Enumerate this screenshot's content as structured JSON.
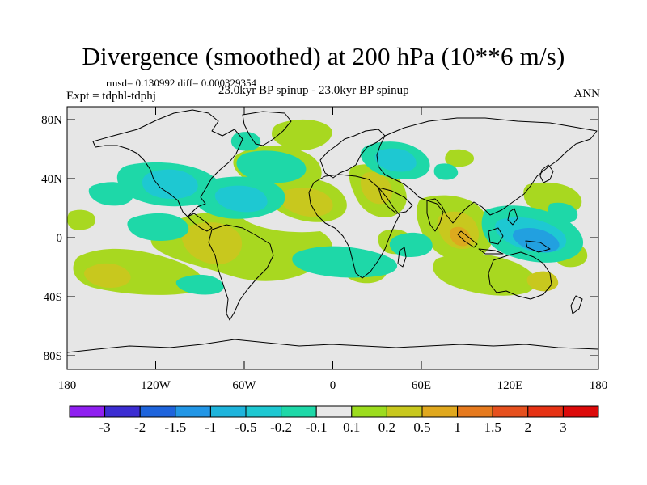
{
  "title": "Divergence (smoothed) at 200 hPa (10**6 m/s)",
  "stats": "rmsd= 0.130992 diff= 0.000329354",
  "expt": "Expt = tdphl-tdphj",
  "subtitle": "23.0kyr BP spinup - 23.0kyr BP spinup",
  "season": "ANN",
  "lat_labels": [
    "80N",
    "40N",
    "0",
    "40S",
    "80S"
  ],
  "lon_labels": [
    "180",
    "120W",
    "60W",
    "0",
    "60E",
    "120E",
    "180"
  ],
  "colorbar": {
    "labels": [
      "-3",
      "-2",
      "-1.5",
      "-1",
      "-0.5",
      "-0.2",
      "-0.1",
      "0.1",
      "0.2",
      "0.5",
      "1",
      "1.5",
      "2",
      "3"
    ],
    "colors": [
      "#8f1ff0",
      "#3c2dd2",
      "#1e64dc",
      "#2296e6",
      "#1eb4dc",
      "#1ec8d2",
      "#1ed8a8",
      "#e8e8e8",
      "#9cdc1e",
      "#c8c81e",
      "#e0a81e",
      "#e67a1e",
      "#e6501e",
      "#e63214",
      "#dc0a0a"
    ]
  },
  "colors": {
    "background": "#e6e6e6",
    "pos_light": "#a8d820",
    "pos_mid": "#c8c81e",
    "pos_strong": "#dcaa1e",
    "neg_light": "#1ed8a8",
    "neg_mid": "#1ec8d2",
    "neg_strong": "#22a0e0"
  }
}
